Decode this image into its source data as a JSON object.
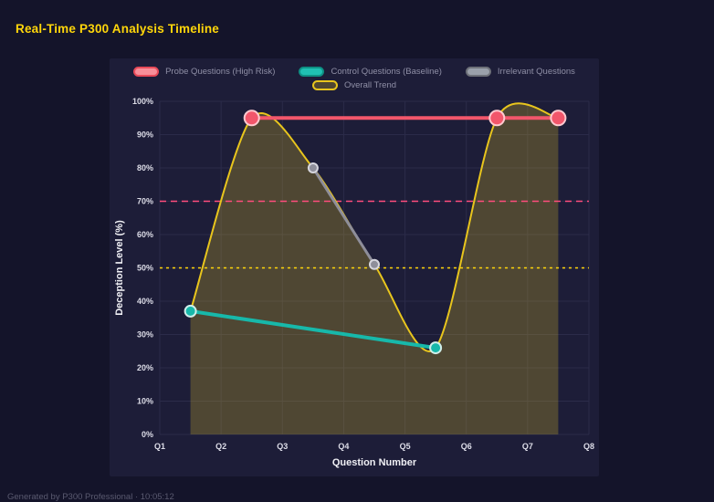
{
  "page": {
    "title": "Real-Time P300 Analysis Timeline",
    "footer": "Generated by P300 Professional · 10:05:12"
  },
  "legend": {
    "rows": [
      [
        {
          "label": "Probe Questions (High Risk)",
          "fill": "#f78f99",
          "border": "#e84a59"
        },
        {
          "label": "Control Questions (Baseline)",
          "fill": "#20c0b2",
          "border": "#0e9084"
        },
        {
          "label": "Irrelevant Questions",
          "fill": "#9aa0aa",
          "border": "#6e7179"
        }
      ],
      [
        {
          "label": "Overall Trend",
          "fill": "rgba(232,197,29,0.25)",
          "border": "#e8c51d"
        }
      ]
    ]
  },
  "chart_data": {
    "type": "line",
    "xlabel": "Question Number",
    "ylabel": "Deception Level (%)",
    "x_ticks": [
      "Q1",
      "Q2",
      "Q3",
      "Q4",
      "Q5",
      "Q6",
      "Q7",
      "Q8"
    ],
    "x_range": [
      1,
      8
    ],
    "ylim": [
      0,
      100
    ],
    "y_tick_step": 10,
    "y_tick_suffix": "%",
    "grid": true,
    "legend_position": "top",
    "series": [
      {
        "name": "Probe Questions (High Risk)",
        "color": "#f2566b",
        "marker_stroke": "#ffc9cf",
        "line_width": 4,
        "marker_radius": 8,
        "points": [
          [
            2.5,
            95
          ],
          [
            6.5,
            95
          ],
          [
            7.5,
            95
          ]
        ]
      },
      {
        "name": "Control Questions (Baseline)",
        "color": "#17b8aa",
        "marker_stroke": "#cfeeea",
        "line_width": 4,
        "marker_radius": 6,
        "points": [
          [
            1.5,
            37
          ],
          [
            5.5,
            26
          ]
        ]
      },
      {
        "name": "Irrelevant Questions",
        "color": "#8e8e9a",
        "marker_stroke": "#d6d6de",
        "line_width": 3,
        "marker_radius": 5,
        "points": [
          [
            3.5,
            80
          ],
          [
            4.5,
            51
          ]
        ]
      }
    ],
    "trend": {
      "name": "Overall Trend",
      "color": "#e8c51d",
      "area_fill": "rgba(214,184,42,0.27)",
      "points": [
        [
          1.5,
          37
        ],
        [
          2.5,
          95
        ],
        [
          3.5,
          80
        ],
        [
          4.5,
          51
        ],
        [
          5.5,
          26
        ],
        [
          6.5,
          95
        ],
        [
          7.5,
          95
        ]
      ]
    },
    "thresholds": [
      {
        "value": 70,
        "color": "#ff4d7d",
        "dash": "7 5"
      },
      {
        "value": 50,
        "color": "#ffd60a",
        "dash": "3 4"
      }
    ],
    "colors": {
      "page_bg": "#14142a",
      "panel_bg": "#1d1d38",
      "grid": "#2b2b49",
      "tick_label": "#dddde8",
      "axis_title": "#f0f0f5",
      "title": "#ffd60a"
    }
  }
}
